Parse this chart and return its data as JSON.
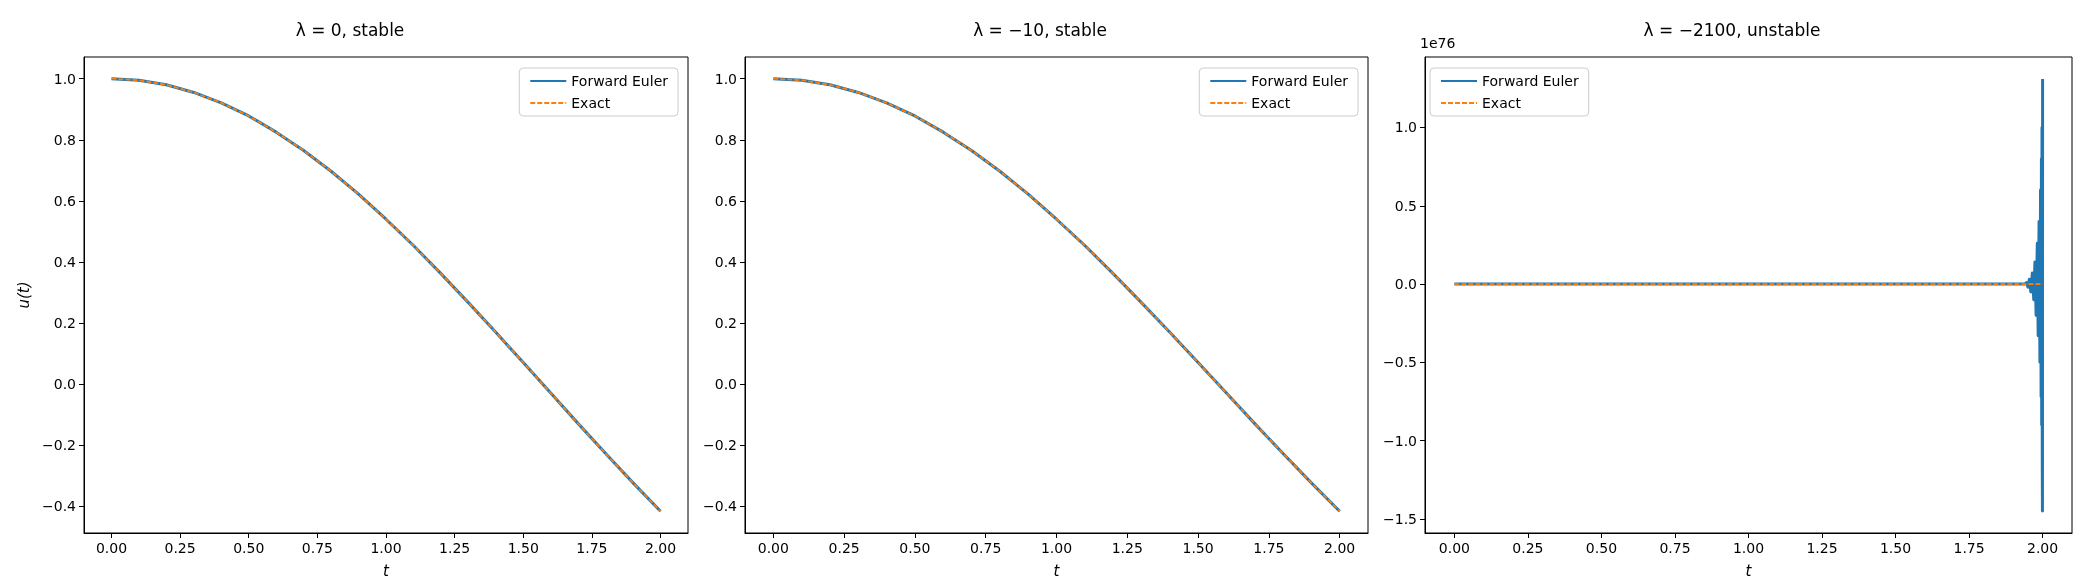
{
  "chart_data": [
    {
      "type": "line",
      "title": "λ = 0, stable",
      "xlabel": "t",
      "ylabel": "u(t)",
      "legend": "top right",
      "grid": false,
      "x": [
        0,
        0.1,
        0.2,
        0.3,
        0.4,
        0.5,
        0.6,
        0.7,
        0.8,
        0.9,
        1.0,
        1.1,
        1.2,
        1.3,
        1.4,
        1.5,
        1.6,
        1.7,
        1.8,
        1.9,
        2.0
      ],
      "series": [
        {
          "name": "Forward Euler",
          "color": "#1f77b4",
          "line_style": "solid",
          "values": [
            1.0,
            0.995,
            0.98,
            0.955,
            0.921,
            0.878,
            0.825,
            0.765,
            0.697,
            0.622,
            0.54,
            0.454,
            0.362,
            0.267,
            0.17,
            0.071,
            -0.029,
            -0.129,
            -0.227,
            -0.323,
            -0.416
          ]
        },
        {
          "name": "Exact",
          "color": "#ff7f0e",
          "line_style": "dashed",
          "values": [
            1.0,
            0.995,
            0.98,
            0.955,
            0.921,
            0.878,
            0.825,
            0.765,
            0.697,
            0.622,
            0.54,
            0.454,
            0.362,
            0.267,
            0.17,
            0.071,
            -0.029,
            -0.129,
            -0.227,
            -0.323,
            -0.416
          ]
        }
      ],
      "xlim": [
        -0.1,
        2.1
      ],
      "xticks": [
        {
          "value": 0,
          "label": "0.00"
        },
        {
          "value": 0.25,
          "label": "0.25"
        },
        {
          "value": 0.5,
          "label": "0.50"
        },
        {
          "value": 0.75,
          "label": "0.75"
        },
        {
          "value": 1,
          "label": "1.00"
        },
        {
          "value": 1.25,
          "label": "1.25"
        },
        {
          "value": 1.5,
          "label": "1.50"
        },
        {
          "value": 1.75,
          "label": "1.75"
        },
        {
          "value": 2,
          "label": "2.00"
        }
      ],
      "ylim": [
        -0.487,
        1.071
      ],
      "yticks": [
        {
          "value": -0.4,
          "label": "−0.4"
        },
        {
          "value": -0.2,
          "label": "−0.2"
        },
        {
          "value": 0,
          "label": "0.0"
        },
        {
          "value": 0.2,
          "label": "0.2"
        },
        {
          "value": 0.4,
          "label": "0.4"
        },
        {
          "value": 0.6,
          "label": "0.6"
        },
        {
          "value": 0.8,
          "label": "0.8"
        },
        {
          "value": 1,
          "label": "1.0"
        }
      ]
    },
    {
      "type": "line",
      "title": "λ = −10, stable",
      "xlabel": "t",
      "legend": "top right",
      "grid": false,
      "x": [
        0,
        0.1,
        0.2,
        0.3,
        0.4,
        0.5,
        0.6,
        0.7,
        0.8,
        0.9,
        1.0,
        1.1,
        1.2,
        1.3,
        1.4,
        1.5,
        1.6,
        1.7,
        1.8,
        1.9,
        2.0
      ],
      "series": [
        {
          "name": "Forward Euler",
          "color": "#1f77b4",
          "line_style": "solid",
          "values": [
            1.0,
            0.995,
            0.98,
            0.955,
            0.921,
            0.878,
            0.825,
            0.765,
            0.697,
            0.622,
            0.54,
            0.454,
            0.362,
            0.267,
            0.17,
            0.071,
            -0.029,
            -0.129,
            -0.227,
            -0.323,
            -0.416
          ]
        },
        {
          "name": "Exact",
          "color": "#ff7f0e",
          "line_style": "dashed",
          "values": [
            1.0,
            0.995,
            0.98,
            0.955,
            0.921,
            0.878,
            0.825,
            0.765,
            0.697,
            0.622,
            0.54,
            0.454,
            0.362,
            0.267,
            0.17,
            0.071,
            -0.029,
            -0.129,
            -0.227,
            -0.323,
            -0.416
          ]
        }
      ],
      "xlim": [
        -0.1,
        2.1
      ],
      "xticks": [
        {
          "value": 0,
          "label": "0.00"
        },
        {
          "value": 0.25,
          "label": "0.25"
        },
        {
          "value": 0.5,
          "label": "0.50"
        },
        {
          "value": 0.75,
          "label": "0.75"
        },
        {
          "value": 1,
          "label": "1.00"
        },
        {
          "value": 1.25,
          "label": "1.25"
        },
        {
          "value": 1.5,
          "label": "1.50"
        },
        {
          "value": 1.75,
          "label": "1.75"
        },
        {
          "value": 2,
          "label": "2.00"
        }
      ],
      "ylim": [
        -0.487,
        1.071
      ],
      "yticks": [
        {
          "value": -0.4,
          "label": "−0.4"
        },
        {
          "value": -0.2,
          "label": "−0.2"
        },
        {
          "value": 0,
          "label": "0.0"
        },
        {
          "value": 0.2,
          "label": "0.2"
        },
        {
          "value": 0.4,
          "label": "0.4"
        },
        {
          "value": 0.6,
          "label": "0.6"
        },
        {
          "value": 0.8,
          "label": "0.8"
        },
        {
          "value": 1,
          "label": "1.0"
        }
      ]
    },
    {
      "type": "line",
      "title": "λ = −2100, unstable",
      "xlabel": "t",
      "legend": "top left",
      "grid": false,
      "annotations": [
        "1e76"
      ],
      "series": [
        {
          "name": "Forward Euler",
          "color": "#1f77b4",
          "line_style": "solid",
          "x": [
            0,
            0.5,
            1.0,
            1.5,
            1.9,
            1.94,
            1.945,
            1.95,
            1.955,
            1.96,
            1.965,
            1.97,
            1.974,
            1.978,
            1.982,
            1.985,
            1.988,
            1.991,
            1.993,
            1.995,
            1.996,
            1.997,
            1.998,
            1.999,
            1.9995,
            2.0
          ],
          "values": [
            0,
            0,
            0,
            0,
            0,
            0,
            0.01,
            -0.02,
            0.03,
            -0.05,
            0.07,
            -0.1,
            0.14,
            -0.2,
            0.26,
            -0.33,
            0.4,
            -0.5,
            0.6,
            -0.72,
            0.8,
            -0.9,
            1.0,
            -1.2,
            -1.45,
            1.31
          ]
        },
        {
          "name": "Exact",
          "color": "#ff7f0e",
          "line_style": "dashed",
          "x": [
            0,
            0.5,
            1.0,
            1.5,
            2.0
          ],
          "values": [
            0,
            0,
            0,
            0,
            0
          ]
        }
      ],
      "xlim": [
        -0.1,
        2.1
      ],
      "xticks": [
        {
          "value": 0,
          "label": "0.00"
        },
        {
          "value": 0.25,
          "label": "0.25"
        },
        {
          "value": 0.5,
          "label": "0.50"
        },
        {
          "value": 0.75,
          "label": "0.75"
        },
        {
          "value": 1,
          "label": "1.00"
        },
        {
          "value": 1.25,
          "label": "1.25"
        },
        {
          "value": 1.5,
          "label": "1.50"
        },
        {
          "value": 1.75,
          "label": "1.75"
        },
        {
          "value": 2,
          "label": "2.00"
        }
      ],
      "ylim": [
        -1.59,
        1.45
      ],
      "yticks": [
        {
          "value": -1.5,
          "label": "−1.5"
        },
        {
          "value": -1,
          "label": "−1.0"
        },
        {
          "value": -0.5,
          "label": "−0.5"
        },
        {
          "value": 0,
          "label": "0.0"
        },
        {
          "value": 0.5,
          "label": "0.5"
        },
        {
          "value": 1,
          "label": "1.0"
        }
      ]
    }
  ]
}
